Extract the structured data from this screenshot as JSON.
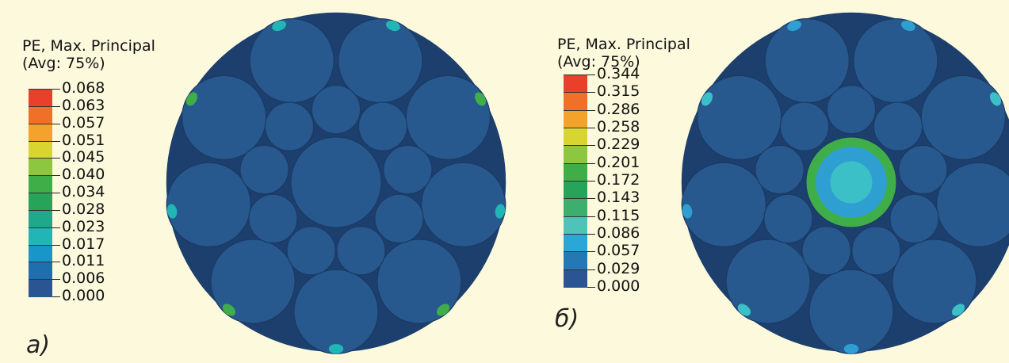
{
  "panels": [
    {
      "id": "a",
      "caption": "a)",
      "legend": {
        "title_line1": "PE, Max. Principal",
        "title_line2": "(Avg: 75%)",
        "values": [
          "0.068",
          "0.063",
          "0.057",
          "0.051",
          "0.045",
          "0.040",
          "0.034",
          "0.028",
          "0.023",
          "0.017",
          "0.011",
          "0.006",
          "0.000"
        ],
        "colors": [
          "#e8402a",
          "#f0702a",
          "#f3a22c",
          "#d9d530",
          "#8dc63f",
          "#3fae49",
          "#27a35a",
          "#1fa88a",
          "#22b5b5",
          "#1896c9",
          "#1f6fae",
          "#2a5592"
        ]
      },
      "strand_color": "#27588e",
      "hotspot_colors": [
        "#22b5b5",
        "#3fae49"
      ]
    },
    {
      "id": "b",
      "caption": "б)",
      "legend": {
        "title_line1": "PE, Max. Principal",
        "title_line2": "(Avg: 75%)",
        "values": [
          "0.344",
          "0.315",
          "0.286",
          "0.258",
          "0.229",
          "0.201",
          "0.172",
          "0.143",
          "0.115",
          "0.086",
          "0.057",
          "0.029",
          "0.000"
        ],
        "colors": [
          "#e8402a",
          "#f0702a",
          "#f3a22c",
          "#d9d530",
          "#8dc63f",
          "#3fae49",
          "#27a35a",
          "#3dae6e",
          "#4fc3b8",
          "#2aa7d6",
          "#2478b6",
          "#2a5592"
        ]
      },
      "strand_color": "#27588e",
      "hotspot_colors": [
        "#2e9fd0",
        "#3cc0c8",
        "#3fae49"
      ]
    }
  ]
}
